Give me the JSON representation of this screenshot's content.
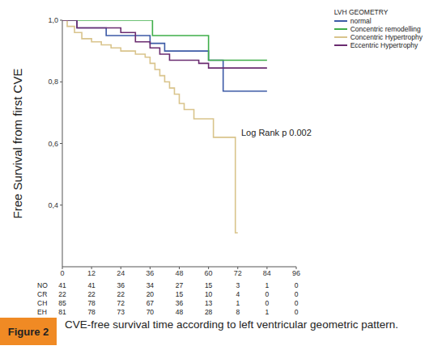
{
  "chart_data": {
    "type": "line",
    "line_style": "step",
    "y_label": "Free Survival from first CVE",
    "legend_title": "LVH GEOMETRY",
    "legend": "upper right",
    "annotation": "Log Rank p 0.002",
    "caption_label": "Figure 2",
    "caption": "CVE-free survival time according to left ventricular geometric pattern.",
    "grid": false,
    "xlim": [
      0,
      96
    ],
    "xticks": [
      0,
      12,
      24,
      36,
      48,
      60,
      72,
      84,
      96
    ],
    "ylim": [
      0.2,
      1.0
    ],
    "yticks": [
      {
        "value": 0.4,
        "label": "0,4"
      },
      {
        "value": 0.6,
        "label": "0,6"
      },
      {
        "value": 0.8,
        "label": "0,8"
      },
      {
        "value": 1.0,
        "label": "1,0"
      }
    ],
    "series": [
      {
        "name": "normal",
        "color": "#3c5aa6",
        "x": [
          0,
          6,
          18,
          36,
          42,
          60,
          66,
          84
        ],
        "values": [
          1.0,
          0.975,
          0.95,
          0.925,
          0.9,
          0.87,
          0.77,
          0.77
        ]
      },
      {
        "name": "Concentric remodelling",
        "color": "#3fae49",
        "x": [
          0,
          37,
          60,
          84
        ],
        "values": [
          1.0,
          0.95,
          0.87,
          0.87
        ]
      },
      {
        "name": "Concentric Hypertrophy",
        "color": "#d9c48c",
        "x": [
          0,
          2,
          5,
          8,
          12,
          16,
          20,
          24,
          30,
          34,
          36,
          38,
          40,
          42,
          44,
          46,
          48,
          50,
          54,
          62,
          71,
          72
        ],
        "values": [
          1.0,
          0.98,
          0.96,
          0.94,
          0.93,
          0.92,
          0.91,
          0.9,
          0.89,
          0.88,
          0.86,
          0.84,
          0.82,
          0.8,
          0.78,
          0.76,
          0.73,
          0.71,
          0.68,
          0.62,
          0.31,
          0.31
        ]
      },
      {
        "name": "Eccentric Hypertrophy",
        "color": "#6a2c70",
        "x": [
          0,
          6,
          24,
          30,
          36,
          40,
          44,
          56,
          60,
          84
        ],
        "values": [
          1.0,
          0.975,
          0.96,
          0.93,
          0.91,
          0.89,
          0.87,
          0.86,
          0.845,
          0.845
        ]
      }
    ],
    "risk_table": {
      "rows": [
        {
          "label": "NO",
          "values": [
            41,
            41,
            36,
            34,
            27,
            15,
            3,
            1,
            0
          ]
        },
        {
          "label": "CR",
          "values": [
            22,
            22,
            22,
            20,
            15,
            10,
            4,
            0,
            0
          ]
        },
        {
          "label": "CH",
          "values": [
            85,
            78,
            72,
            67,
            36,
            13,
            1,
            0,
            0
          ]
        },
        {
          "label": "EH",
          "values": [
            81,
            78,
            73,
            70,
            48,
            28,
            8,
            1,
            0
          ]
        }
      ]
    }
  }
}
